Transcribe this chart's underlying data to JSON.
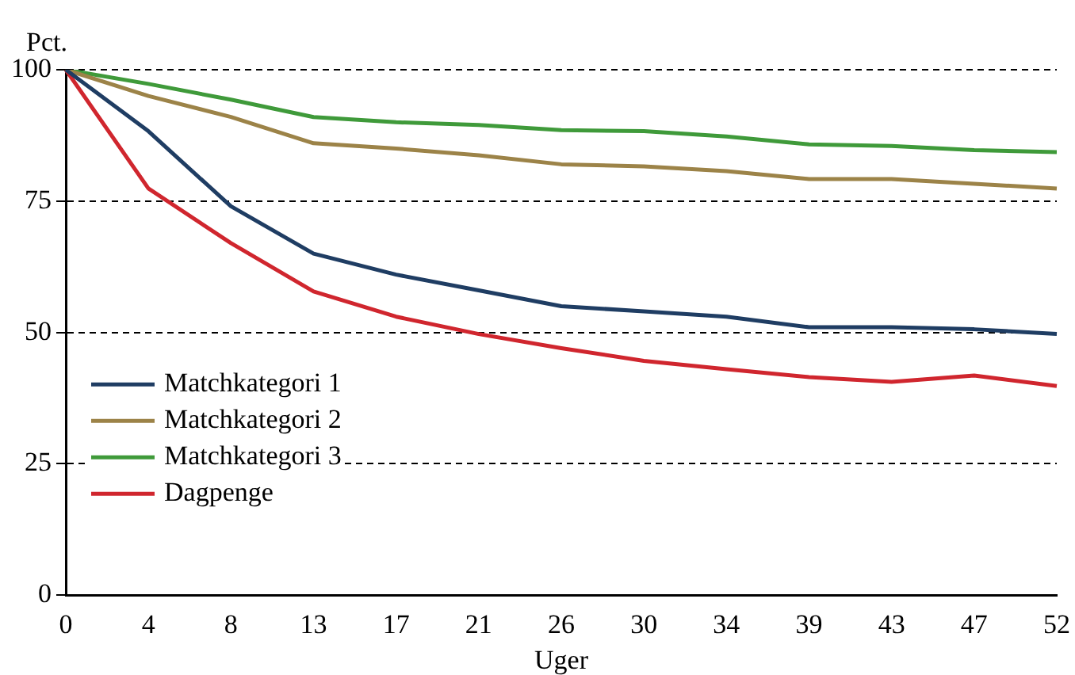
{
  "chart_data": {
    "type": "line",
    "ylabel": "Pct.",
    "xlabel": "Uger",
    "categories": [
      "0",
      "4",
      "8",
      "13",
      "17",
      "21",
      "26",
      "30",
      "34",
      "39",
      "43",
      "47",
      "52"
    ],
    "series": [
      {
        "name": "Matchkategori 1",
        "color": "#1f3d63",
        "values": [
          100,
          88.3,
          74,
          65,
          61,
          58,
          55,
          54,
          53,
          51,
          51,
          50.6,
          49.7
        ]
      },
      {
        "name": "Matchkategori 2",
        "color": "#9c8348",
        "values": [
          100,
          95,
          91,
          86,
          85,
          83.7,
          82,
          81.6,
          80.7,
          79.2,
          79.2,
          78.3,
          77.4
        ]
      },
      {
        "name": "Matchkategori 3",
        "color": "#3f9a3a",
        "values": [
          100,
          97.3,
          94.3,
          91,
          90,
          89.5,
          88.5,
          88.3,
          87.3,
          85.8,
          85.5,
          84.7,
          84.3
        ]
      },
      {
        "name": "Dagpenge",
        "color": "#d0262e",
        "values": [
          100,
          77.4,
          67,
          57.8,
          53,
          49.7,
          47,
          44.6,
          43,
          41.5,
          40.6,
          41.8,
          39.8
        ]
      }
    ],
    "ylim": [
      0,
      100
    ],
    "yticks": [
      0,
      25,
      50,
      75,
      100
    ],
    "grid": "y",
    "legend": "bottom left",
    "marker": "none",
    "line_style": "solid"
  }
}
